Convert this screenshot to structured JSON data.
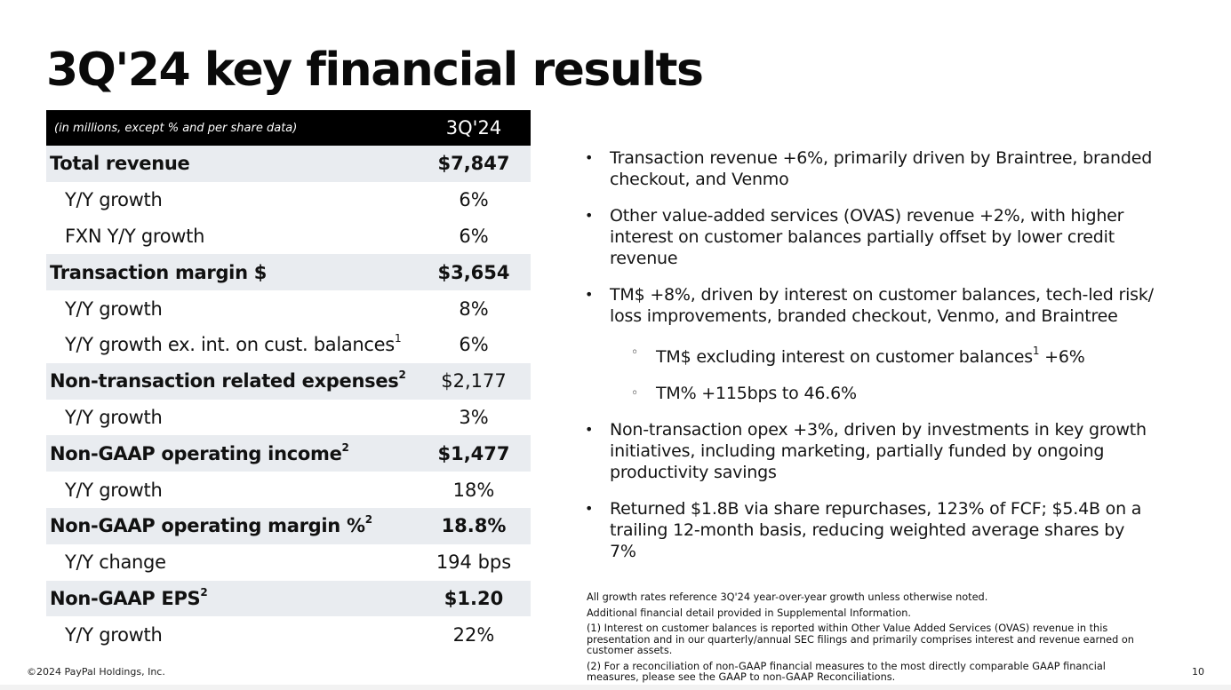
{
  "title": "3Q'24 key financial results",
  "table": {
    "header_label": "(in millions, except % and per share data)",
    "header_period": "3Q'24",
    "rows": [
      {
        "label": "Total revenue",
        "sup": "",
        "value": "$7,847"
      },
      {
        "label": "Y/Y growth",
        "sup": "",
        "value": "6%"
      },
      {
        "label": "FXN Y/Y growth",
        "sup": "",
        "value": "6%"
      },
      {
        "label": "Transaction margin $",
        "sup": "",
        "value": "$3,654"
      },
      {
        "label": "Y/Y growth",
        "sup": "",
        "value": "8%"
      },
      {
        "label": "Y/Y growth ex. int. on cust. balances",
        "sup": "1",
        "value": "6%"
      },
      {
        "label": "Non-transaction related expenses",
        "sup": "2",
        "value": "$2,177"
      },
      {
        "label": "Y/Y growth",
        "sup": "",
        "value": "3%"
      },
      {
        "label": "Non-GAAP operating income",
        "sup": "2",
        "value": "$1,477"
      },
      {
        "label": "Y/Y growth",
        "sup": "",
        "value": "18%"
      },
      {
        "label": "Non-GAAP operating margin %",
        "sup": "2",
        "value": "18.8%"
      },
      {
        "label": "Y/Y change",
        "sup": "",
        "value": "194 bps"
      },
      {
        "label": "Non-GAAP EPS",
        "sup": "2",
        "value": "$1.20"
      },
      {
        "label": "Y/Y growth",
        "sup": "",
        "value": "22%"
      }
    ]
  },
  "bullets": [
    {
      "text": "Transaction revenue +6%, primarily driven by Braintree, branded checkout, and Venmo"
    },
    {
      "text": "Other value-added services (OVAS) revenue +2%, with higher interest on customer balances partially offset by lower credit revenue"
    },
    {
      "text": "TM$ +8%, driven by interest on customer balances, tech-led risk/ loss improvements, branded checkout, Venmo, and Braintree"
    },
    {
      "text_before": "TM$ excluding interest on customer balances",
      "sup": "1",
      "text_after": " +6%"
    },
    {
      "text": "TM% +115bps to 46.6%"
    },
    {
      "text": "Non-transaction opex +3%, driven by investments in key growth initiatives, including marketing, partially funded by ongoing productivity savings"
    },
    {
      "text": "Returned $1.8B via share repurchases, 123% of FCF; $5.4B on a trailing 12-month basis, reducing weighted average shares by 7%"
    }
  ],
  "notes": [
    "All growth rates reference 3Q'24 year-over-year growth unless otherwise noted.",
    "Additional financial detail provided in Supplemental Information.",
    "(1) Interest on customer balances is reported within Other Value Added Services (OVAS) revenue in this presentation and in our quarterly/annual SEC filings and primarily comprises interest and revenue earned on customer assets.",
    "(2) For a reconciliation of non-GAAP financial measures to the most directly comparable GAAP financial measures, please see the GAAP to non-GAAP Reconciliations."
  ],
  "copyright": "©2024 PayPal Holdings, Inc.",
  "page_number": "10"
}
